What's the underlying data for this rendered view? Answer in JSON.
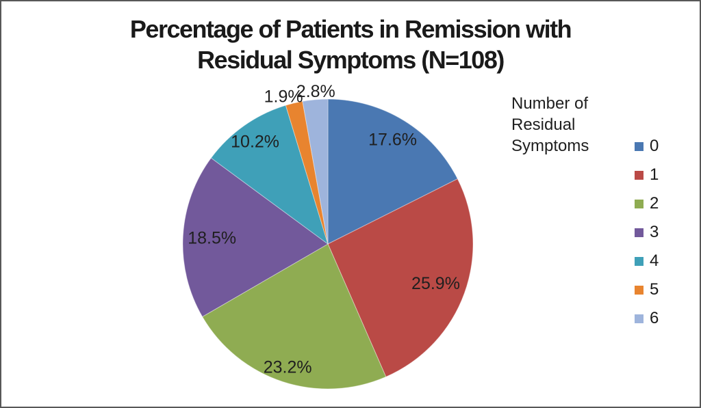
{
  "frame": {
    "border_color": "#575757",
    "background_color": "#ffffff"
  },
  "chart_data": {
    "type": "pie",
    "title": "Percentage of Patients in Remission with Residual Symptoms (N=108)",
    "title_lines": [
      "Percentage of Patients in Remission with",
      "Residual Symptoms (N=108)"
    ],
    "total_n": 108,
    "legend_title": "Number of Residual Symptoms",
    "legend_position": "right",
    "data_labels_format": "percent, one decimal",
    "start_angle_deg": 0,
    "direction": "clockwise",
    "categories": [
      "0",
      "1",
      "2",
      "3",
      "4",
      "5",
      "6"
    ],
    "values": [
      17.6,
      25.9,
      23.2,
      18.5,
      10.2,
      1.9,
      2.8
    ],
    "data_labels": [
      "17.6%",
      "25.9%",
      "23.2%",
      "18.5%",
      "10.2%",
      "1.9%",
      "2.8%"
    ],
    "colors": [
      "#4A78B2",
      "#BA4A46",
      "#8FAC52",
      "#72599B",
      "#3FA0B8",
      "#E8842F",
      "#9EB4DC"
    ],
    "label_color": "#1f1f1f"
  }
}
